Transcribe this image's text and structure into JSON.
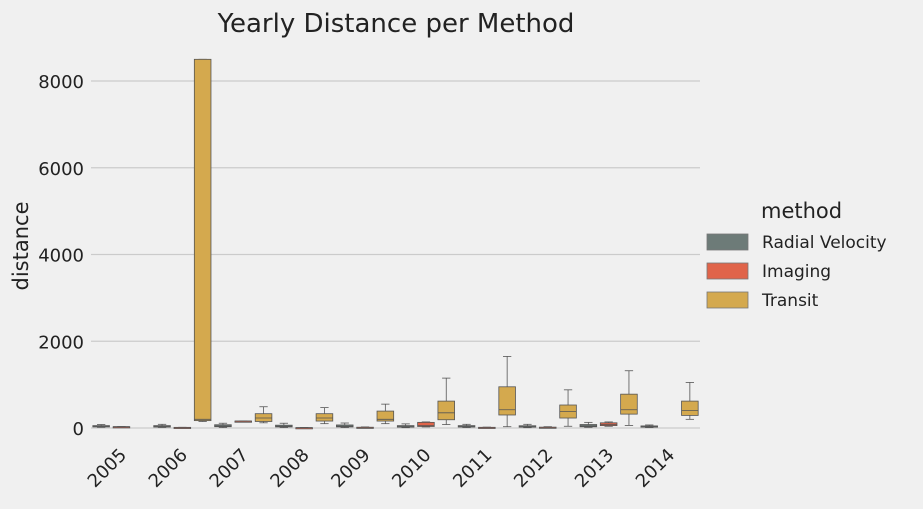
{
  "chart_data": {
    "type": "box",
    "title": "Yearly Distance per Method",
    "xlabel": "",
    "ylabel": "distance",
    "categories": [
      "2005",
      "2006",
      "2007",
      "2008",
      "2009",
      "2010",
      "2011",
      "2012",
      "2013",
      "2014"
    ],
    "yticks": [
      0,
      2000,
      4000,
      6000,
      8000
    ],
    "ylim": [
      -400,
      8900
    ],
    "grid": "horizontal",
    "legend": {
      "title": "method",
      "placement": "right"
    },
    "series": [
      {
        "name": "Radial Velocity",
        "color": "#6d7b78",
        "boxes": [
          {
            "year": "2005",
            "whislo": 15,
            "q1": 25,
            "med": 35,
            "q3": 55,
            "whishi": 80
          },
          {
            "year": "2006",
            "whislo": 12,
            "q1": 22,
            "med": 33,
            "q3": 55,
            "whishi": 85
          },
          {
            "year": "2007",
            "whislo": 10,
            "q1": 30,
            "med": 45,
            "q3": 75,
            "whishi": 110
          },
          {
            "year": "2008",
            "whislo": 10,
            "q1": 25,
            "med": 38,
            "q3": 65,
            "whishi": 110
          },
          {
            "year": "2009",
            "whislo": 10,
            "q1": 25,
            "med": 40,
            "q3": 70,
            "whishi": 115
          },
          {
            "year": "2010",
            "whislo": 8,
            "q1": 20,
            "med": 32,
            "q3": 55,
            "whishi": 95
          },
          {
            "year": "2011",
            "whislo": 10,
            "q1": 22,
            "med": 35,
            "q3": 55,
            "whishi": 85
          },
          {
            "year": "2012",
            "whislo": 8,
            "q1": 20,
            "med": 32,
            "q3": 52,
            "whishi": 85
          },
          {
            "year": "2013",
            "whislo": 15,
            "q1": 28,
            "med": 45,
            "q3": 80,
            "whishi": 130
          },
          {
            "year": "2014",
            "whislo": 10,
            "q1": 20,
            "med": 30,
            "q3": 48,
            "whishi": 70
          }
        ]
      },
      {
        "name": "Imaging",
        "color": "#e0644a",
        "boxes": [
          {
            "year": "2005",
            "whislo": 30,
            "q1": 30,
            "med": 30,
            "q3": 30,
            "whishi": 30
          },
          {
            "year": "2006",
            "whislo": 15,
            "q1": 15,
            "med": 15,
            "q3": 15,
            "whishi": 15
          },
          {
            "year": "2007",
            "whislo": 160,
            "q1": 160,
            "med": 160,
            "q3": 160,
            "whishi": 160
          },
          {
            "year": "2008",
            "whislo": 8,
            "q1": 8,
            "med": 8,
            "q3": 8,
            "whishi": 8
          },
          {
            "year": "2009",
            "whislo": 10,
            "q1": 12,
            "med": 15,
            "q3": 18,
            "whishi": 25
          },
          {
            "year": "2010",
            "whislo": 25,
            "q1": 35,
            "med": 60,
            "q3": 130,
            "whishi": 140
          },
          {
            "year": "2011",
            "whislo": 10,
            "q1": 12,
            "med": 14,
            "q3": 16,
            "whishi": 20
          },
          {
            "year": "2012",
            "whislo": 8,
            "q1": 10,
            "med": 14,
            "q3": 20,
            "whishi": 30
          },
          {
            "year": "2013",
            "whislo": 40,
            "q1": 55,
            "med": 80,
            "q3": 120,
            "whishi": 140
          }
        ]
      },
      {
        "name": "Transit",
        "color": "#d4a94e",
        "boxes": [
          {
            "year": "2006",
            "whislo": 150,
            "q1": 170,
            "med": 200,
            "q3": 8500,
            "whishi": 8500
          },
          {
            "year": "2007",
            "whislo": 120,
            "q1": 150,
            "med": 230,
            "q3": 330,
            "whishi": 490
          },
          {
            "year": "2008",
            "whislo": 100,
            "q1": 160,
            "med": 230,
            "q3": 330,
            "whishi": 470
          },
          {
            "year": "2009",
            "whislo": 100,
            "q1": 160,
            "med": 200,
            "q3": 390,
            "whishi": 550
          },
          {
            "year": "2010",
            "whislo": 80,
            "q1": 190,
            "med": 350,
            "q3": 620,
            "whishi": 1150
          },
          {
            "year": "2011",
            "whislo": 30,
            "q1": 300,
            "med": 420,
            "q3": 950,
            "whishi": 1650
          },
          {
            "year": "2012",
            "whislo": 40,
            "q1": 230,
            "med": 380,
            "q3": 530,
            "whishi": 880
          },
          {
            "year": "2013",
            "whislo": 60,
            "q1": 320,
            "med": 420,
            "q3": 780,
            "whishi": 1320
          },
          {
            "year": "2014",
            "whislo": 200,
            "q1": 290,
            "med": 400,
            "q3": 620,
            "whishi": 1050
          }
        ]
      }
    ]
  }
}
